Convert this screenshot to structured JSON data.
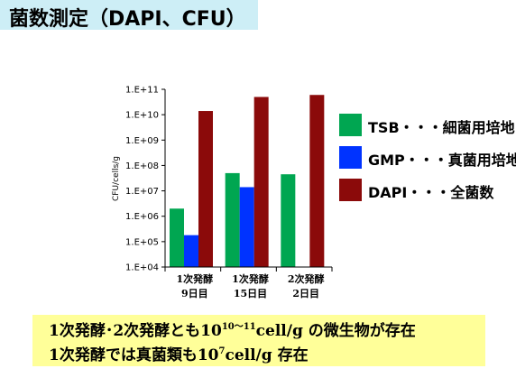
{
  "slide": {
    "title": "菌数測定（DAPI、CFU）"
  },
  "chart_data": {
    "type": "bar",
    "ylabel": "CFU/cells/g",
    "yscale": "log",
    "ylim": [
      10000,
      100000000000
    ],
    "yticks": [
      "1.E+04",
      "1.E+05",
      "1.E+06",
      "1.E+07",
      "1.E+08",
      "1.E+09",
      "1.E+10",
      "1.E+11"
    ],
    "grid": false,
    "legend_position": "right",
    "categories": [
      {
        "line1": "1次発酵",
        "line2": "9日目"
      },
      {
        "line1": "1次発酵",
        "line2": "15日目"
      },
      {
        "line1": "2次発酵",
        "line2": "2日目"
      }
    ],
    "series": [
      {
        "name": "TSB・・・細菌用培地",
        "color": "#00a651",
        "values": [
          2000000,
          50000000,
          45000000
        ]
      },
      {
        "name": "GMP・・・真菌用培地",
        "color": "#0033ff",
        "values": [
          180000,
          14000000,
          null
        ]
      },
      {
        "name": "DAPI・・・全菌数",
        "color": "#8b0a0a",
        "values": [
          14000000000,
          50000000000,
          60000000000
        ]
      }
    ]
  },
  "notes": {
    "line1": {
      "prefix": "1次発酵･2次発酵とも10",
      "sup": "10～11",
      "suffix": "cell/g の微生物が存在"
    },
    "line2": {
      "prefix": "1次発酵では真菌類も10",
      "sup": "7",
      "suffix": "cell/g 存在"
    }
  }
}
